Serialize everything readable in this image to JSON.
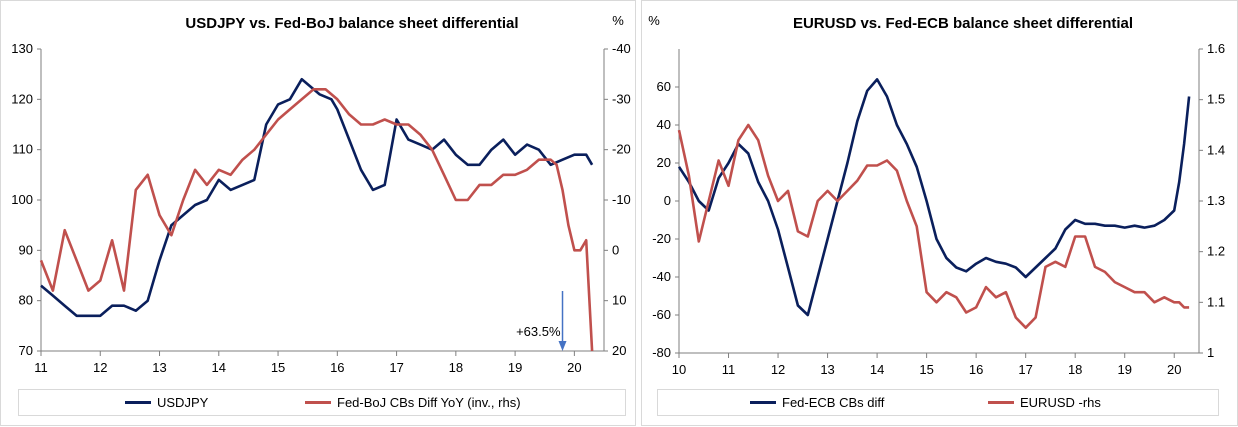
{
  "colors": {
    "navy": "#0a1f5c",
    "red": "#c0504d",
    "arrow": "#4472c4",
    "axis": "#7f7f7f"
  },
  "chart_data": [
    {
      "type": "line",
      "title": "USDJPY vs. Fed-BoJ balance sheet differential",
      "x_ticks": [
        "11",
        "12",
        "13",
        "14",
        "15",
        "16",
        "17",
        "18",
        "19",
        "20"
      ],
      "xlim": [
        2011,
        2020.5
      ],
      "y_left": {
        "lim": [
          70,
          130
        ],
        "ticks": [
          "70",
          "80",
          "90",
          "100",
          "110",
          "120",
          "130"
        ]
      },
      "y_right": {
        "lim": [
          -40,
          20
        ],
        "inverted": true,
        "unit": "%",
        "ticks": [
          "-40",
          "-30",
          "-20",
          "-10",
          "0",
          "10",
          "20"
        ]
      },
      "annotation": "+63.5%",
      "series": [
        {
          "name": "USDJPY",
          "axis": "left",
          "color": "navy",
          "x": [
            2011.0,
            2011.2,
            2011.4,
            2011.6,
            2011.8,
            2012.0,
            2012.2,
            2012.4,
            2012.6,
            2012.8,
            2013.0,
            2013.2,
            2013.4,
            2013.6,
            2013.8,
            2014.0,
            2014.2,
            2014.4,
            2014.6,
            2014.8,
            2015.0,
            2015.2,
            2015.4,
            2015.5,
            2015.7,
            2015.9,
            2016.0,
            2016.2,
            2016.4,
            2016.6,
            2016.8,
            2017.0,
            2017.2,
            2017.4,
            2017.6,
            2017.8,
            2018.0,
            2018.2,
            2018.4,
            2018.6,
            2018.8,
            2019.0,
            2019.2,
            2019.4,
            2019.6,
            2019.8,
            2020.0,
            2020.2,
            2020.3
          ],
          "y": [
            83,
            81,
            79,
            77,
            77,
            77,
            79,
            79,
            78,
            80,
            88,
            95,
            97,
            99,
            100,
            104,
            102,
            103,
            104,
            115,
            119,
            120,
            124,
            123,
            121,
            120,
            118,
            112,
            106,
            102,
            103,
            116,
            112,
            111,
            110,
            112,
            109,
            107,
            107,
            110,
            112,
            109,
            111,
            110,
            107,
            108,
            109,
            109,
            107
          ]
        },
        {
          "name": "Fed-BoJ CBs Diff YoY (inv., rhs)",
          "axis": "right",
          "color": "red",
          "x": [
            2011.0,
            2011.2,
            2011.4,
            2011.6,
            2011.8,
            2012.0,
            2012.2,
            2012.4,
            2012.6,
            2012.8,
            2013.0,
            2013.2,
            2013.4,
            2013.6,
            2013.8,
            2014.0,
            2014.2,
            2014.4,
            2014.6,
            2014.8,
            2015.0,
            2015.2,
            2015.4,
            2015.6,
            2015.8,
            2016.0,
            2016.2,
            2016.4,
            2016.6,
            2016.8,
            2017.0,
            2017.2,
            2017.4,
            2017.6,
            2017.8,
            2018.0,
            2018.2,
            2018.4,
            2018.6,
            2018.8,
            2019.0,
            2019.2,
            2019.4,
            2019.6,
            2019.7,
            2019.8,
            2019.9,
            2020.0,
            2020.1,
            2020.2,
            2020.3
          ],
          "y": [
            2,
            8,
            -4,
            2,
            8,
            6,
            -2,
            8,
            -12,
            -15,
            -7,
            -3,
            -10,
            -16,
            -13,
            -16,
            -15,
            -18,
            -20,
            -23,
            -26,
            -28,
            -30,
            -32,
            -32,
            -30,
            -27,
            -25,
            -25,
            -26,
            -25,
            -25,
            -23,
            -20,
            -15,
            -10,
            -10,
            -13,
            -13,
            -15,
            -15,
            -16,
            -18,
            -18,
            -17,
            -12,
            -5,
            0,
            0,
            -2,
            22
          ]
        }
      ]
    },
    {
      "type": "line",
      "title": "EURUSD vs. Fed-ECB balance sheet differential",
      "x_ticks": [
        "10",
        "11",
        "12",
        "13",
        "14",
        "15",
        "16",
        "17",
        "18",
        "19",
        "20"
      ],
      "xlim": [
        2010,
        2020.5
      ],
      "y_left": {
        "lim": [
          -80,
          80
        ],
        "unit": "%",
        "ticks": [
          "-80",
          "-60",
          "-40",
          "-20",
          "0",
          "20",
          "40",
          "60"
        ]
      },
      "y_right": {
        "lim": [
          1.0,
          1.6
        ],
        "ticks": [
          "1",
          "1.1",
          "1.2",
          "1.3",
          "1.4",
          "1.5",
          "1.6"
        ]
      },
      "series": [
        {
          "name": "Fed-ECB CBs diff",
          "axis": "left",
          "color": "navy",
          "x": [
            2010.0,
            2010.2,
            2010.4,
            2010.6,
            2010.8,
            2011.0,
            2011.2,
            2011.4,
            2011.6,
            2011.8,
            2012.0,
            2012.2,
            2012.4,
            2012.6,
            2012.8,
            2013.0,
            2013.2,
            2013.4,
            2013.6,
            2013.8,
            2014.0,
            2014.2,
            2014.4,
            2014.6,
            2014.8,
            2015.0,
            2015.2,
            2015.4,
            2015.6,
            2015.8,
            2016.0,
            2016.2,
            2016.4,
            2016.6,
            2016.8,
            2017.0,
            2017.2,
            2017.4,
            2017.6,
            2017.8,
            2018.0,
            2018.2,
            2018.4,
            2018.6,
            2018.8,
            2019.0,
            2019.2,
            2019.4,
            2019.6,
            2019.8,
            2020.0,
            2020.1,
            2020.2,
            2020.3
          ],
          "y": [
            18,
            10,
            0,
            -5,
            12,
            20,
            30,
            25,
            10,
            0,
            -15,
            -35,
            -55,
            -60,
            -40,
            -20,
            0,
            20,
            42,
            58,
            64,
            55,
            40,
            30,
            18,
            0,
            -20,
            -30,
            -35,
            -37,
            -33,
            -30,
            -32,
            -33,
            -35,
            -40,
            -35,
            -30,
            -25,
            -15,
            -10,
            -12,
            -12,
            -13,
            -13,
            -14,
            -13,
            -14,
            -13,
            -10,
            -5,
            10,
            30,
            55
          ]
        },
        {
          "name": "EURUSD -rhs",
          "axis": "right",
          "color": "red",
          "x": [
            2010.0,
            2010.2,
            2010.4,
            2010.6,
            2010.8,
            2011.0,
            2011.2,
            2011.4,
            2011.6,
            2011.8,
            2012.0,
            2012.2,
            2012.4,
            2012.6,
            2012.8,
            2013.0,
            2013.2,
            2013.4,
            2013.6,
            2013.8,
            2014.0,
            2014.2,
            2014.4,
            2014.6,
            2014.8,
            2015.0,
            2015.2,
            2015.4,
            2015.6,
            2015.8,
            2016.0,
            2016.2,
            2016.4,
            2016.6,
            2016.8,
            2017.0,
            2017.2,
            2017.4,
            2017.6,
            2017.8,
            2018.0,
            2018.2,
            2018.4,
            2018.6,
            2018.8,
            2019.0,
            2019.2,
            2019.4,
            2019.6,
            2019.8,
            2020.0,
            2020.1,
            2020.2,
            2020.3
          ],
          "y": [
            1.44,
            1.35,
            1.22,
            1.3,
            1.38,
            1.33,
            1.42,
            1.45,
            1.42,
            1.35,
            1.3,
            1.32,
            1.24,
            1.23,
            1.3,
            1.32,
            1.3,
            1.32,
            1.34,
            1.37,
            1.37,
            1.38,
            1.36,
            1.3,
            1.25,
            1.12,
            1.1,
            1.12,
            1.11,
            1.08,
            1.09,
            1.13,
            1.11,
            1.12,
            1.07,
            1.05,
            1.07,
            1.17,
            1.18,
            1.17,
            1.23,
            1.23,
            1.17,
            1.16,
            1.14,
            1.13,
            1.12,
            1.12,
            1.1,
            1.11,
            1.1,
            1.1,
            1.09,
            1.09
          ]
        }
      ]
    }
  ]
}
